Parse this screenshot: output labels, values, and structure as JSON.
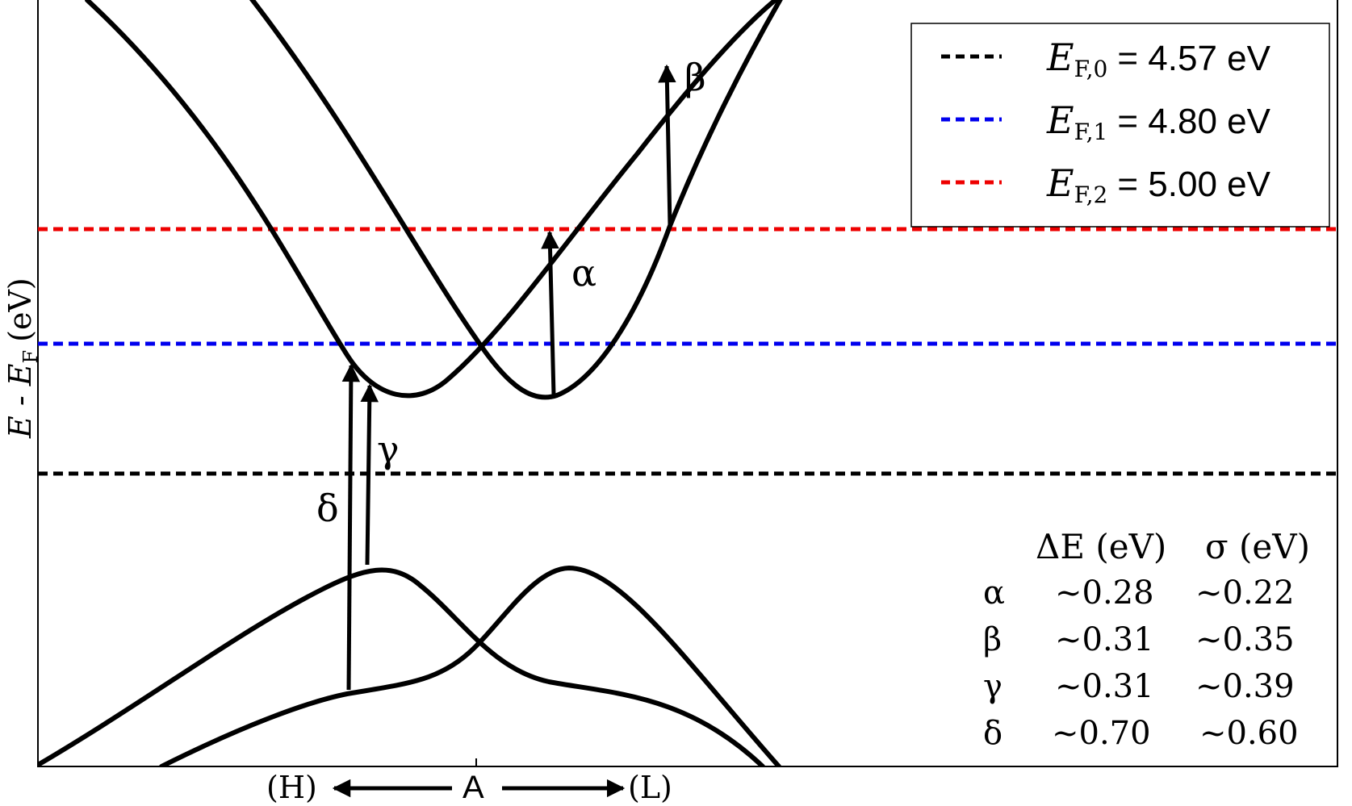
{
  "axes": {
    "ylabel_main": "E - E",
    "ylabel_sub": "F",
    "ylabel_unit": "(eV)",
    "x_left": "(H)",
    "x_center": "A",
    "x_right": "(L)"
  },
  "legend": [
    {
      "var": "E",
      "sub": "F,0",
      "value": "= 4.57 eV",
      "color": "#000000"
    },
    {
      "var": "E",
      "sub": "F,1",
      "value": "= 4.80 eV",
      "color": "#0000ee"
    },
    {
      "var": "E",
      "sub": "F,2",
      "value": "= 5.00 eV",
      "color": "#ee0000"
    }
  ],
  "transitions": [
    {
      "label": "α"
    },
    {
      "label": "β"
    },
    {
      "label": "γ"
    },
    {
      "label": "δ"
    }
  ],
  "table": {
    "header_de": "ΔE (eV)",
    "header_sigma": "σ (eV)",
    "rows": [
      {
        "label": "α",
        "de": "~0.28",
        "sigma": "~0.22"
      },
      {
        "label": "β",
        "de": "~0.31",
        "sigma": "~0.35"
      },
      {
        "label": "γ",
        "de": "~0.31",
        "sigma": "~0.39"
      },
      {
        "label": "δ",
        "de": "~0.70",
        "sigma": "~0.60"
      }
    ]
  },
  "colors": {
    "fermi_0": "#000000",
    "fermi_1": "#0000ee",
    "fermi_2": "#ee0000",
    "bands": "#000000"
  }
}
